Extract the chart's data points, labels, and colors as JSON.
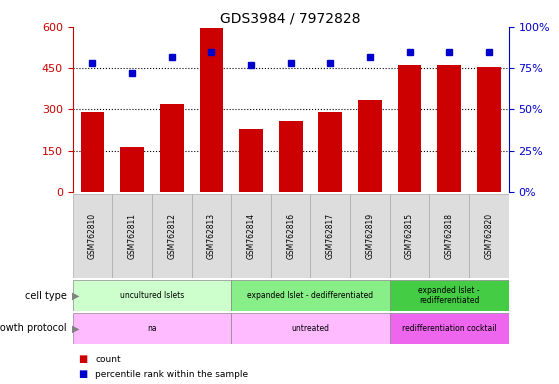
{
  "title": "GDS3984 / 7972828",
  "samples": [
    "GSM762810",
    "GSM762811",
    "GSM762812",
    "GSM762813",
    "GSM762814",
    "GSM762816",
    "GSM762817",
    "GSM762819",
    "GSM762815",
    "GSM762818",
    "GSM762820"
  ],
  "counts": [
    290,
    162,
    318,
    595,
    228,
    258,
    290,
    335,
    460,
    460,
    455
  ],
  "percentile_ranks": [
    78,
    72,
    82,
    85,
    77,
    78,
    78,
    82,
    85,
    85,
    85
  ],
  "ylim_left": [
    0,
    600
  ],
  "ylim_right": [
    0,
    100
  ],
  "yticks_left": [
    0,
    150,
    300,
    450,
    600
  ],
  "yticks_right": [
    0,
    25,
    50,
    75,
    100
  ],
  "bar_color": "#cc0000",
  "dot_color": "#0000cc",
  "cell_groups": [
    {
      "label": "uncultured Islets",
      "start": 0,
      "end": 4,
      "color": "#ccffcc"
    },
    {
      "label": "expanded Islet - dedifferentiated",
      "start": 4,
      "end": 8,
      "color": "#88ee88"
    },
    {
      "label": "expanded Islet -\nredifferentiated",
      "start": 8,
      "end": 11,
      "color": "#44cc44"
    }
  ],
  "growth_groups": [
    {
      "label": "na",
      "start": 0,
      "end": 4,
      "color": "#ffbbff"
    },
    {
      "label": "untreated",
      "start": 4,
      "end": 8,
      "color": "#ffbbff"
    },
    {
      "label": "redifferentiation cocktail",
      "start": 8,
      "end": 11,
      "color": "#ee66ee"
    }
  ],
  "tick_color_left": "#cc0000",
  "tick_color_right": "#0000cc",
  "label_bg": "#dddddd",
  "dotted_yticks": [
    150,
    300,
    450
  ]
}
